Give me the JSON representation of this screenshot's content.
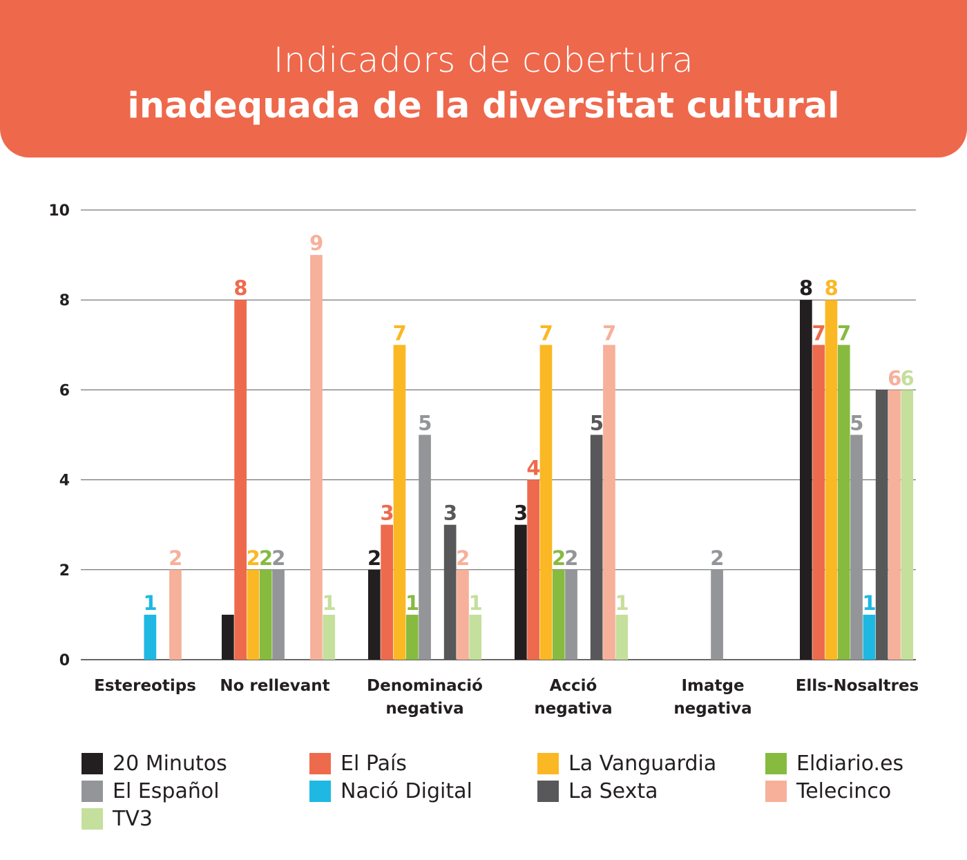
{
  "title": {
    "line1": "Indicadors de cobertura",
    "line2": "inadequada de la diversitat cultural"
  },
  "chart_data": {
    "type": "bar",
    "categories": [
      "Estereotips",
      "No rellevant",
      "Denominació\nnegativa",
      "Acció\nnegativa",
      "Imatge\nnegativa",
      "Ells-Nosaltres"
    ],
    "series": [
      {
        "name": "20 Minutos",
        "color": "#231f20",
        "values": [
          0,
          1,
          2,
          3,
          0,
          8
        ]
      },
      {
        "name": "El País",
        "color": "#ee6a4d",
        "values": [
          0,
          8,
          3,
          4,
          0,
          7
        ]
      },
      {
        "name": "La Vanguardia",
        "color": "#fbb825",
        "values": [
          0,
          2,
          7,
          7,
          0,
          8
        ]
      },
      {
        "name": "Eldiario.es",
        "color": "#86bb40",
        "values": [
          0,
          2,
          1,
          2,
          0,
          7
        ]
      },
      {
        "name": "El Español",
        "color": "#939598",
        "values": [
          0,
          2,
          5,
          2,
          2,
          5
        ]
      },
      {
        "name": "Nació Digital",
        "color": "#1eb8e3",
        "values": [
          1,
          0,
          0,
          0,
          0,
          1
        ]
      },
      {
        "name": "La Sexta",
        "color": "#58585a",
        "values": [
          0,
          0,
          3,
          5,
          0,
          6
        ]
      },
      {
        "name": "Telecinco",
        "color": "#f7b09a",
        "values": [
          2,
          9,
          2,
          7,
          0,
          6
        ]
      },
      {
        "name": "TV3",
        "color": "#c5df9c",
        "values": [
          0,
          1,
          1,
          1,
          0,
          6
        ]
      }
    ],
    "data_labels": [
      [
        null,
        null,
        null,
        null,
        null,
        "1",
        null,
        "2",
        null
      ],
      [
        null,
        "8",
        "2",
        "2",
        "2",
        null,
        null,
        "9",
        "1"
      ],
      [
        "2",
        "3",
        "7",
        "1",
        "5",
        null,
        "3",
        "2",
        "1"
      ],
      [
        "3",
        "4",
        "7",
        "2",
        "2",
        null,
        "5",
        "7",
        "1"
      ],
      [
        null,
        null,
        null,
        null,
        "2",
        null,
        null,
        null,
        null
      ],
      [
        "8",
        "7",
        "8",
        "7",
        "5",
        "1",
        null,
        "6",
        "6"
      ]
    ],
    "yticks": [
      "0",
      "2",
      "4",
      "6",
      "8",
      "10"
    ],
    "ylim": [
      0,
      10
    ],
    "grid": true,
    "legend_position": "bottom"
  }
}
